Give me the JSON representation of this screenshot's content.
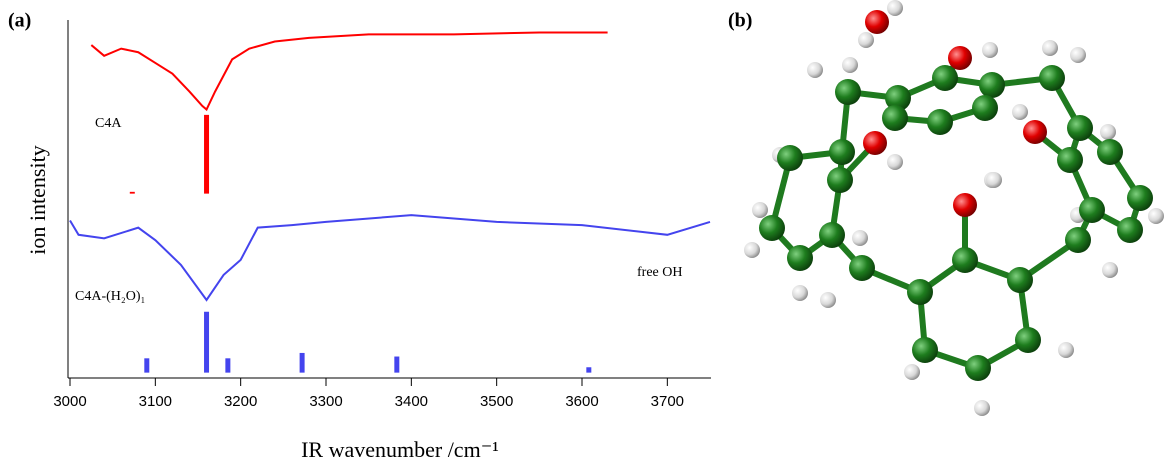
{
  "panel_labels": [
    "(a)",
    "(b)"
  ],
  "chart_data": {
    "type": "line",
    "xlabel": "IR wavenumber /cm⁻¹",
    "ylabel": "ion intensity",
    "annotations": [
      "C4A",
      "C4A-(H₂O)₁",
      "free OH"
    ],
    "xlim": [
      3000,
      3750
    ],
    "xticks": [
      3000,
      3100,
      3200,
      3300,
      3400,
      3500,
      3600,
      3700
    ],
    "ylim": [
      0,
      100
    ],
    "series": [
      {
        "type": "line",
        "color": "#ff0000",
        "x": [
          3025,
          3040,
          3060,
          3080,
          3100,
          3120,
          3140,
          3155,
          3160,
          3170,
          3190,
          3210,
          3240,
          3280,
          3350,
          3450,
          3550,
          3630
        ],
        "values": [
          93,
          90,
          92,
          91,
          88,
          85,
          80,
          76,
          75,
          80,
          89,
          92,
          94,
          95,
          96,
          96,
          96.5,
          96.5
        ]
      },
      {
        "type": "stick",
        "color": "#ff0000",
        "base": 51.5,
        "x": [
          3073,
          3160
        ],
        "values": [
          52,
          73.5
        ]
      },
      {
        "type": "line",
        "color": "#4444ee",
        "x": [
          3000,
          3010,
          3040,
          3080,
          3100,
          3130,
          3160,
          3180,
          3200,
          3220,
          3260,
          3300,
          3400,
          3500,
          3600,
          3700,
          3750
        ],
        "values": [
          44,
          40,
          39,
          42,
          38.5,
          31.6,
          21.8,
          28.8,
          33,
          42,
          42.7,
          43.6,
          45.5,
          43.6,
          42.7,
          40,
          43.6
        ]
      },
      {
        "type": "stick",
        "color": "#4444ee",
        "base": 1.5,
        "x": [
          3090,
          3160,
          3185,
          3272,
          3383,
          3608
        ],
        "values": [
          5.5,
          18.5,
          5.5,
          7,
          6,
          3
        ]
      }
    ]
  }
}
